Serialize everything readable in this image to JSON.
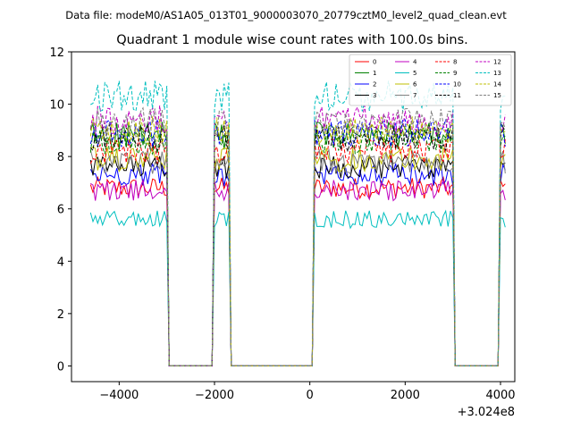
{
  "chart_data": {
    "type": "line",
    "supertitle": "Data file: modeM0/AS1A05_013T01_9000003070_20779cztM0_level2_quad_clean.evt",
    "title": "Quadrant 1 module wise count rates with 100.0s bins.",
    "xlabel": "",
    "ylabel": "",
    "x_offset_label": "+3.024e8",
    "xlim": [
      -5000,
      4300
    ],
    "ylim": [
      -0.6,
      12
    ],
    "x_ticks": [
      -4000,
      -2000,
      0,
      2000,
      4000
    ],
    "x_tick_labels": [
      "−4000",
      "−2000",
      "0",
      "2000",
      "4000"
    ],
    "y_ticks": [
      0,
      2,
      4,
      6,
      8,
      10,
      12
    ],
    "y_tick_labels": [
      "0",
      "2",
      "4",
      "6",
      "8",
      "10",
      "12"
    ],
    "grid": false,
    "legend_location": "upper-right",
    "segments": [
      {
        "x_start": -4600,
        "x_end": -3000
      },
      {
        "x_start": -2000,
        "x_end": -1700
      },
      {
        "x_start": 100,
        "x_end": 3000
      },
      {
        "x_start": 4000,
        "x_end": 4100
      }
    ],
    "series": [
      {
        "name": "0",
        "color": "#ff0000",
        "dash": "solid",
        "level": 6.8
      },
      {
        "name": "1",
        "color": "#008000",
        "dash": "solid",
        "level": 8.8
      },
      {
        "name": "2",
        "color": "#0000ff",
        "dash": "solid",
        "level": 7.3
      },
      {
        "name": "3",
        "color": "#000000",
        "dash": "solid",
        "level": 7.6
      },
      {
        "name": "4",
        "color": "#c000c0",
        "dash": "solid",
        "level": 6.7
      },
      {
        "name": "5",
        "color": "#00bfbf",
        "dash": "solid",
        "level": 5.6
      },
      {
        "name": "6",
        "color": "#bfbf00",
        "dash": "solid",
        "level": 7.9
      },
      {
        "name": "7",
        "color": "#808080",
        "dash": "solid",
        "level": 7.8
      },
      {
        "name": "8",
        "color": "#ff0000",
        "dash": "dashed",
        "level": 8.2
      },
      {
        "name": "9",
        "color": "#008000",
        "dash": "dashed",
        "level": 8.6
      },
      {
        "name": "10",
        "color": "#0000ff",
        "dash": "dashed",
        "level": 8.9
      },
      {
        "name": "11",
        "color": "#000000",
        "dash": "dashed",
        "level": 8.7
      },
      {
        "name": "12",
        "color": "#c000c0",
        "dash": "dashed",
        "level": 9.4
      },
      {
        "name": "13",
        "color": "#00bfbf",
        "dash": "dashed",
        "level": 10.3
      },
      {
        "name": "14",
        "color": "#bfbf00",
        "dash": "dashed",
        "level": 9.0
      },
      {
        "name": "15",
        "color": "#808080",
        "dash": "dashed",
        "level": 9.3
      }
    ]
  }
}
